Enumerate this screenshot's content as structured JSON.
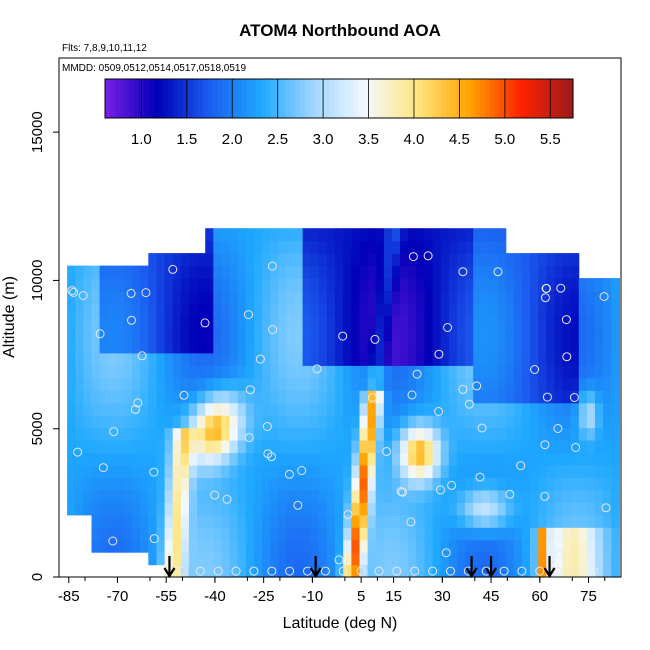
{
  "chart_data": {
    "type": "heatmap",
    "title": "ATOM4 Northbound AOA",
    "notes": [
      "Flts: 7,8,9,10,11,12",
      "MMDD: 0509,0512,0514,0517,0518,0519"
    ],
    "xlabel": "Latitude (deg N)",
    "ylabel": "Altitude (m)",
    "xlim": [
      -88,
      85
    ],
    "ylim": [
      0,
      17500
    ],
    "x_tick_labels": [
      "-85",
      "-70",
      "-55",
      "-40",
      "-25",
      "-10",
      "5",
      "15",
      "30",
      "45",
      "60",
      "75"
    ],
    "y_tick_labels": [
      "0",
      "5000",
      "10000",
      "15000"
    ],
    "colorbar": {
      "range": [
        0.6,
        5.75
      ],
      "tick_labels": [
        "1.0",
        "1.5",
        "2.0",
        "2.5",
        "3.0",
        "3.5",
        "4.0",
        "4.5",
        "5.0",
        "5.5"
      ],
      "colors": [
        "#7b1fe6",
        "#0000b8",
        "#1c5cf0",
        "#1ea8ff",
        "#9fd6ff",
        "#f2f8ff",
        "#ffe680",
        "#ffa500",
        "#ff2200",
        "#9b1b1b"
      ]
    },
    "profile_markers_lat": [
      -54,
      -9,
      39,
      45,
      63
    ],
    "grid": false,
    "legend": "colorbar top"
  }
}
